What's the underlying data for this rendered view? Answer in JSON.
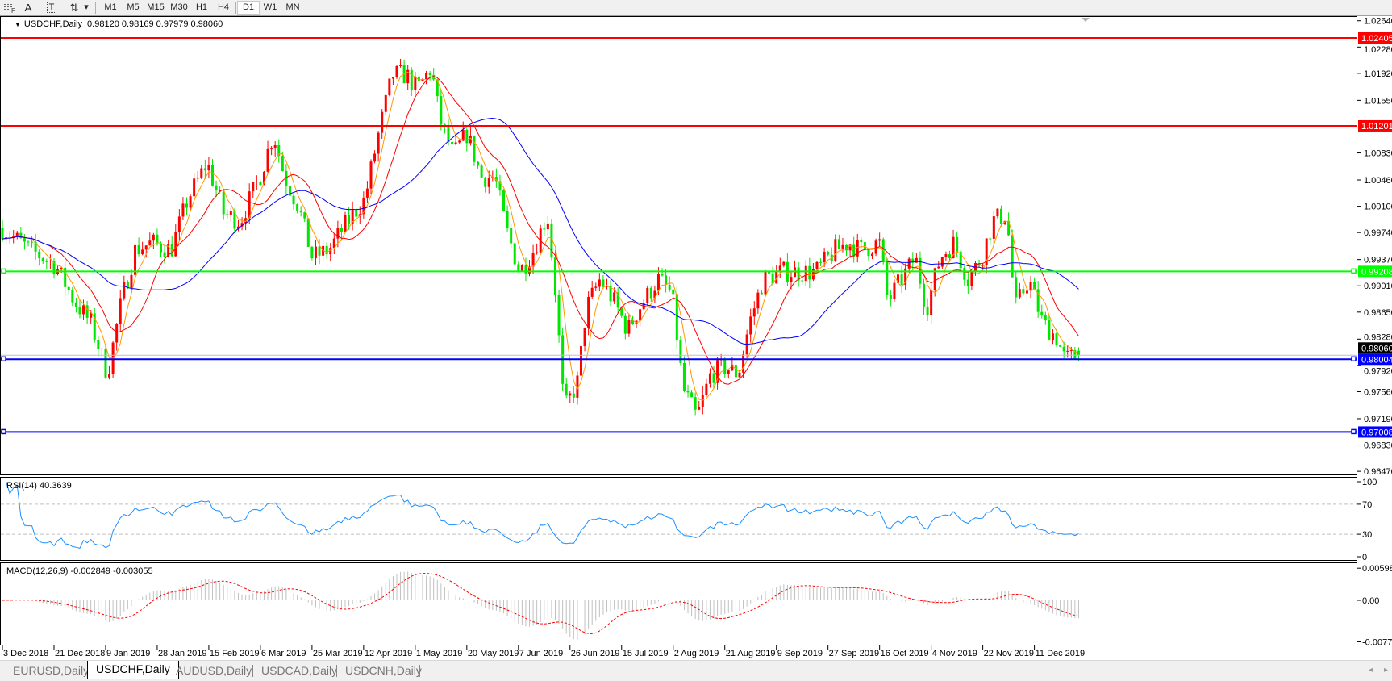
{
  "toolbar": {
    "icons": [
      "grid-icon",
      "text-icon",
      "text-label-icon",
      "arrows-icon"
    ],
    "icon_glyphs": {
      "text": "A",
      "label": "T",
      "arrows": "⇅",
      "dropdown": "▾"
    },
    "timeframes": [
      "M1",
      "M5",
      "M15",
      "M30",
      "H1",
      "H4",
      "D1",
      "W1",
      "MN"
    ],
    "active_timeframe": "D1"
  },
  "chart_header": {
    "arrow": "▼",
    "symbol": "USDCHF,Daily",
    "ohlc": "0.98120 0.98169 0.97979 0.98060"
  },
  "tabs": [
    {
      "label": "EURUSD,Daily",
      "active": false
    },
    {
      "label": "USDCHF,Daily",
      "active": true
    },
    {
      "label": "AUDUSD,Daily",
      "active": false
    },
    {
      "label": "USDCAD,Daily",
      "active": false
    },
    {
      "label": "USDCNH,Daily",
      "active": false
    }
  ],
  "scroll": {
    "left": "◂",
    "right": "▸"
  },
  "chart_data": {
    "type": "candlestick",
    "symbol": "USDCHF",
    "timeframe": "Daily",
    "last_bar": {
      "open": 0.9812,
      "high": 0.98169,
      "low": 0.97979,
      "close": 0.9806
    },
    "colors": {
      "bull": "#ff0000",
      "bear": "#00e600",
      "ma_fast": "#ff9900",
      "ma_mid": "#ff0000",
      "ma_slow": "#0000ff"
    },
    "ylim": [
      0.9647,
      1.0264
    ],
    "price_ticks": [
      "1.02640",
      "1.02280",
      "1.01920",
      "1.01550",
      "1.00830",
      "1.00460",
      "1.00100",
      "0.99740",
      "0.99370",
      "0.99010",
      "0.98650",
      "0.98280",
      "0.97920",
      "0.97560",
      "0.97190",
      "0.96830",
      "0.96470"
    ],
    "date_ticks": [
      "3 Dec 2018",
      "21 Dec 2018",
      "9 Jan 2019",
      "28 Jan 2019",
      "15 Feb 2019",
      "6 Mar 2019",
      "25 Mar 2019",
      "12 Apr 2019",
      "1 May 2019",
      "20 May 2019",
      "7 Jun 2019",
      "26 Jun 2019",
      "15 Jul 2019",
      "2 Aug 2019",
      "21 Aug 2019",
      "9 Sep 2019",
      "27 Sep 2019",
      "16 Oct 2019",
      "4 Nov 2019",
      "22 Nov 2019",
      "11 Dec 2019"
    ],
    "horizontal_lines": [
      {
        "price": "1.02405",
        "color": "#ff0000"
      },
      {
        "price": "1.01201",
        "color": "#ff0000"
      },
      {
        "price": "0.99208",
        "color": "#00ff00"
      },
      {
        "price": "0.98004",
        "color": "#0000ff"
      },
      {
        "price": "0.97008",
        "color": "#0000ff"
      }
    ],
    "current_price": "0.98060",
    "price_path": [
      [
        "2018-12-03",
        0.998
      ],
      [
        "2018-12-13",
        0.995
      ],
      [
        "2018-12-22",
        0.993
      ],
      [
        "2018-12-29",
        0.988
      ],
      [
        "2019-01-04",
        0.985
      ],
      [
        "2019-01-10",
        0.978
      ],
      [
        "2019-01-15",
        0.988
      ],
      [
        "2019-01-20",
        0.995
      ],
      [
        "2019-01-26",
        0.996
      ],
      [
        "2019-02-02",
        0.995
      ],
      [
        "2019-02-08",
        1.002
      ],
      [
        "2019-02-15",
        1.007
      ],
      [
        "2019-02-21",
        1.0
      ],
      [
        "2019-02-27",
        0.999
      ],
      [
        "2019-03-06",
        1.005
      ],
      [
        "2019-03-11",
        1.011
      ],
      [
        "2019-03-15",
        1.005
      ],
      [
        "2019-03-20",
        1.001
      ],
      [
        "2019-03-25",
        0.994
      ],
      [
        "2019-03-31",
        0.995
      ],
      [
        "2019-04-07",
        0.999
      ],
      [
        "2019-04-13",
        1.002
      ],
      [
        "2019-04-18",
        1.011
      ],
      [
        "2019-04-23",
        1.019
      ],
      [
        "2019-04-28",
        1.019
      ],
      [
        "2019-05-02",
        1.017
      ],
      [
        "2019-05-07",
        1.02
      ],
      [
        "2019-05-10",
        1.013
      ],
      [
        "2019-05-15",
        1.008
      ],
      [
        "2019-05-20",
        1.011
      ],
      [
        "2019-05-25",
        1.005
      ],
      [
        "2019-05-30",
        1.005
      ],
      [
        "2019-06-03",
        0.998
      ],
      [
        "2019-06-08",
        0.992
      ],
      [
        "2019-06-13",
        0.995
      ],
      [
        "2019-06-18",
        1.0
      ],
      [
        "2019-06-21",
        0.989
      ],
      [
        "2019-06-24",
        0.973
      ],
      [
        "2019-06-29",
        0.977
      ],
      [
        "2019-07-02",
        0.987
      ],
      [
        "2019-07-07",
        0.991
      ],
      [
        "2019-07-12",
        0.988
      ],
      [
        "2019-07-17",
        0.984
      ],
      [
        "2019-07-21",
        0.987
      ],
      [
        "2019-07-28",
        0.991
      ],
      [
        "2019-08-02",
        0.989
      ],
      [
        "2019-08-06",
        0.976
      ],
      [
        "2019-08-11",
        0.972
      ],
      [
        "2019-08-16",
        0.978
      ],
      [
        "2019-08-21",
        0.979
      ],
      [
        "2019-08-26",
        0.978
      ],
      [
        "2019-08-30",
        0.985
      ],
      [
        "2019-09-04",
        0.991
      ],
      [
        "2019-09-11",
        0.992
      ],
      [
        "2019-09-17",
        0.992
      ],
      [
        "2019-09-23",
        0.992
      ],
      [
        "2019-09-30",
        0.995
      ],
      [
        "2019-10-05",
        0.996
      ],
      [
        "2019-10-09",
        0.995
      ],
      [
        "2019-10-16",
        0.996
      ],
      [
        "2019-10-19",
        0.988
      ],
      [
        "2019-10-24",
        0.991
      ],
      [
        "2019-10-29",
        0.994
      ],
      [
        "2019-11-02",
        0.987
      ],
      [
        "2019-11-07",
        0.994
      ],
      [
        "2019-11-12",
        0.996
      ],
      [
        "2019-11-17",
        0.991
      ],
      [
        "2019-11-22",
        0.994
      ],
      [
        "2019-11-26",
        0.999
      ],
      [
        "2019-12-01",
        1.0
      ],
      [
        "2019-12-04",
        0.987
      ],
      [
        "2019-12-09",
        0.991
      ],
      [
        "2019-12-14",
        0.985
      ],
      [
        "2019-12-19",
        0.983
      ],
      [
        "2019-12-22",
        0.98
      ],
      [
        "2019-12-27",
        0.9806
      ]
    ],
    "rsi": {
      "label": "RSI(14) 40.3639",
      "levels": [
        "100",
        "70",
        "30",
        "0"
      ],
      "color": "#1e90ff"
    },
    "macd": {
      "label": "MACD(12,26,9) -0.002849 -0.003055",
      "ticks": [
        "0.005986",
        "0.00",
        "-0.007737"
      ],
      "histogram_color": "#c0c0c0",
      "signal_color": "#ff0000"
    }
  }
}
